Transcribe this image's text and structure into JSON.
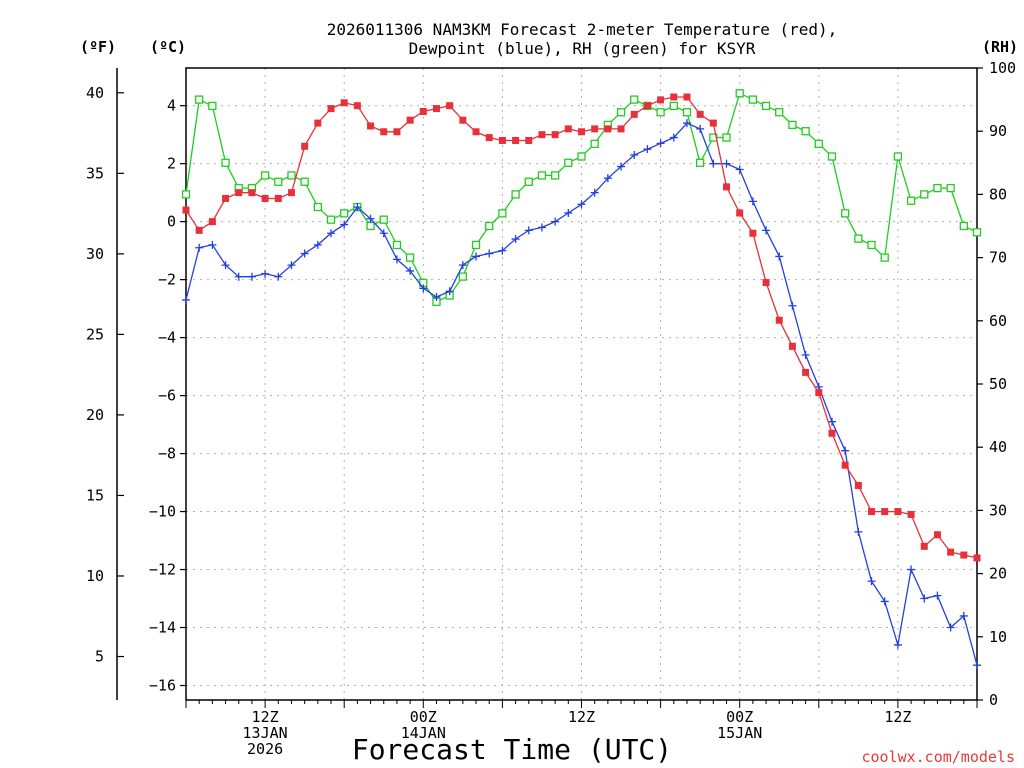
{
  "chart_data": {
    "type": "line",
    "title_line1": "2026011306 NAM3KM Forecast 2-meter Temperature (red),",
    "title_line2": "Dewpoint (blue), RH (green) for KSYR",
    "xlabel": "Forecast Time (UTC)",
    "credit": "coolwx.com/models",
    "units": {
      "fahrenheit": "(ºF)",
      "celsius": "(ºC)",
      "rh": "(RH)"
    },
    "colors": {
      "temperature": "#e8303a",
      "dewpoint": "#2440e0",
      "rh": "#22cc22",
      "grid": "#b0b0b0"
    },
    "x_hours": {
      "start": 6,
      "end": 66,
      "step": 1
    },
    "ylim_c": [
      -16.5,
      5.3
    ],
    "ylim_rh": [
      0,
      100
    ],
    "yticks_c": [
      "4",
      "2",
      "0",
      "−2",
      "−4",
      "−6",
      "−8",
      "−10",
      "−12",
      "−14",
      "−16"
    ],
    "yticks_c_values": [
      4,
      2,
      0,
      -2,
      -4,
      -6,
      -8,
      -10,
      -12,
      -14,
      -16
    ],
    "yticks_f": [
      "40",
      "35",
      "30",
      "25",
      "20",
      "15",
      "10",
      "5"
    ],
    "yticks_f_values": [
      40,
      35,
      30,
      25,
      20,
      15,
      10,
      5
    ],
    "yticks_rh": [
      "100",
      "90",
      "80",
      "70",
      "60",
      "50",
      "40",
      "30",
      "20",
      "10",
      "0"
    ],
    "yticks_rh_values": [
      100,
      90,
      80,
      70,
      60,
      50,
      40,
      30,
      20,
      10,
      0
    ],
    "xticks": [
      {
        "hour": 12,
        "lines": [
          "12Z",
          "13JAN",
          "2026"
        ]
      },
      {
        "hour": 24,
        "lines": [
          "00Z",
          "14JAN"
        ]
      },
      {
        "hour": 36,
        "lines": [
          "12Z"
        ]
      },
      {
        "hour": 48,
        "lines": [
          "00Z",
          "15JAN"
        ]
      },
      {
        "hour": 60,
        "lines": [
          "12Z"
        ]
      }
    ],
    "series": [
      {
        "name": "Temperature",
        "unit": "degC",
        "color": "#e8303a",
        "marker": "filled-square",
        "values": [
          0.4,
          -0.3,
          0.0,
          0.8,
          1.0,
          1.0,
          0.8,
          0.8,
          1.0,
          2.6,
          3.4,
          3.9,
          4.1,
          4.0,
          3.3,
          3.1,
          3.1,
          3.5,
          3.8,
          3.9,
          4.0,
          3.5,
          3.1,
          2.9,
          2.8,
          2.8,
          2.8,
          3.0,
          3.0,
          3.2,
          3.1,
          3.2,
          3.2,
          3.2,
          3.7,
          4.0,
          4.2,
          4.3,
          4.3,
          3.7,
          3.4,
          1.2,
          0.3,
          -0.4,
          -2.1,
          -3.4,
          -4.3,
          -5.2,
          -5.9,
          -7.3,
          -8.4,
          -9.1,
          -10.0,
          -10.0,
          -10.0,
          -10.1,
          -11.2,
          -10.8,
          -11.4,
          -11.5,
          -11.6
        ]
      },
      {
        "name": "Dewpoint",
        "unit": "degC",
        "color": "#2440e0",
        "marker": "plus",
        "values": [
          -2.7,
          -0.9,
          -0.8,
          -1.5,
          -1.9,
          -1.9,
          -1.8,
          -1.9,
          -1.5,
          -1.1,
          -0.8,
          -0.4,
          -0.1,
          0.5,
          0.1,
          -0.4,
          -1.3,
          -1.7,
          -2.3,
          -2.6,
          -2.4,
          -1.5,
          -1.2,
          -1.1,
          -1.0,
          -0.6,
          -0.3,
          -0.2,
          0.0,
          0.3,
          0.6,
          1.0,
          1.5,
          1.9,
          2.3,
          2.5,
          2.7,
          2.9,
          3.4,
          3.2,
          2.0,
          2.0,
          1.8,
          0.7,
          -0.3,
          -1.2,
          -2.9,
          -4.6,
          -5.7,
          -6.9,
          -7.9,
          -10.7,
          -12.4,
          -13.1,
          -14.6,
          -12.0,
          -13.0,
          -12.9,
          -14.0,
          -13.6,
          -15.3
        ]
      },
      {
        "name": "Relative Humidity",
        "unit": "%",
        "color": "#22cc22",
        "marker": "open-square",
        "values": [
          80,
          95,
          94,
          85,
          81,
          81,
          83,
          82,
          83,
          82,
          78,
          76,
          77,
          78,
          75,
          76,
          72,
          70,
          66,
          63,
          64,
          67,
          72,
          75,
          77,
          80,
          82,
          83,
          83,
          85,
          86,
          88,
          91,
          93,
          95,
          94,
          93,
          94,
          93,
          85,
          89,
          89,
          96,
          95,
          94,
          93,
          91,
          90,
          88,
          86,
          77,
          73,
          72,
          70,
          86,
          79,
          80,
          81,
          81,
          75,
          74
        ]
      }
    ]
  }
}
